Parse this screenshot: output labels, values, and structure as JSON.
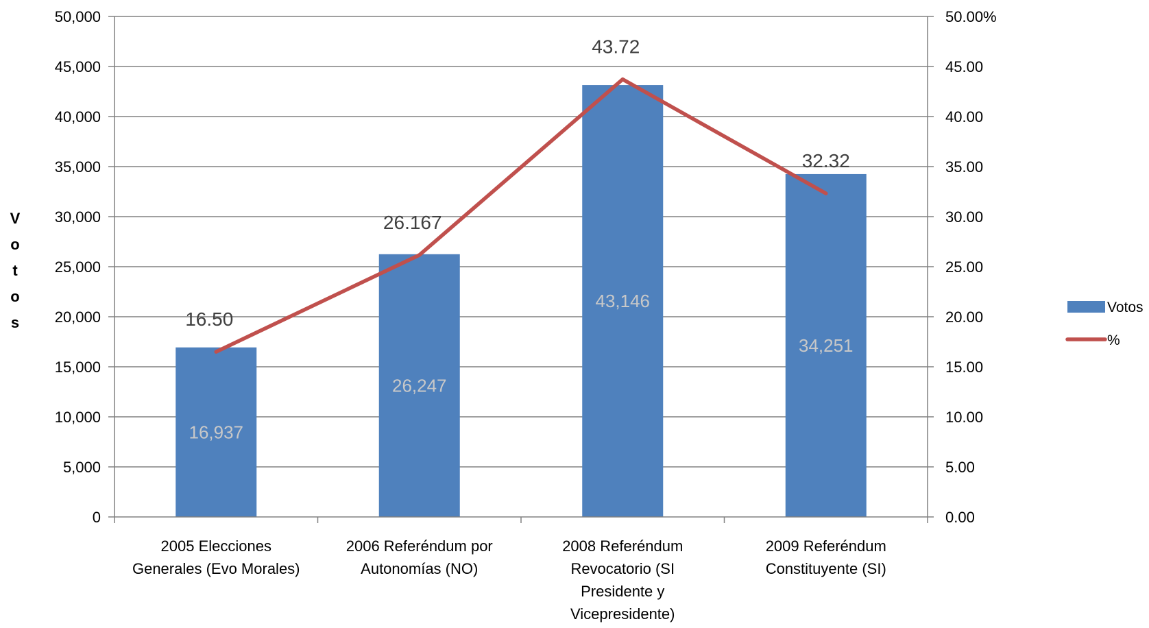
{
  "chart_data": {
    "type": "bar",
    "categories": [
      [
        "2005 Elecciones",
        "Generales (Evo Morales)"
      ],
      [
        "2006 Referéndum por",
        "Autonomías (NO)"
      ],
      [
        "2008 Referéndum",
        "Revocatorio (SI",
        "Presidente y",
        "Vicepresidente)"
      ],
      [
        "2009 Referéndum",
        "Constituyente (SI)"
      ]
    ],
    "series": [
      {
        "name": "Votos",
        "type": "bar",
        "axis": "left",
        "values": [
          16937,
          26247,
          43146,
          34251
        ],
        "labels": [
          "16,937",
          "26,247",
          "43,146",
          "34,251"
        ],
        "color": "#4f81bd"
      },
      {
        "name": "%",
        "type": "line",
        "axis": "right",
        "values": [
          16.5,
          26.167,
          43.72,
          32.32
        ],
        "labels": [
          "16.50",
          "26.167",
          "43.72",
          "32.32"
        ],
        "color": "#c0504d"
      }
    ],
    "ylabel": "Votos",
    "ylim": [
      0,
      50000
    ],
    "yticks": [
      "0",
      "5,000",
      "10,000",
      "15,000",
      "20,000",
      "25,000",
      "30,000",
      "35,000",
      "40,000",
      "45,000",
      "50,000"
    ],
    "y2lim": [
      0,
      50
    ],
    "y2ticks": [
      "0.00",
      "5.00",
      "10.00",
      "15.00",
      "20.00",
      "25.00",
      "30.00",
      "35.00",
      "40.00",
      "45.00",
      "50.00%"
    ],
    "grid": true,
    "legend": "right"
  }
}
